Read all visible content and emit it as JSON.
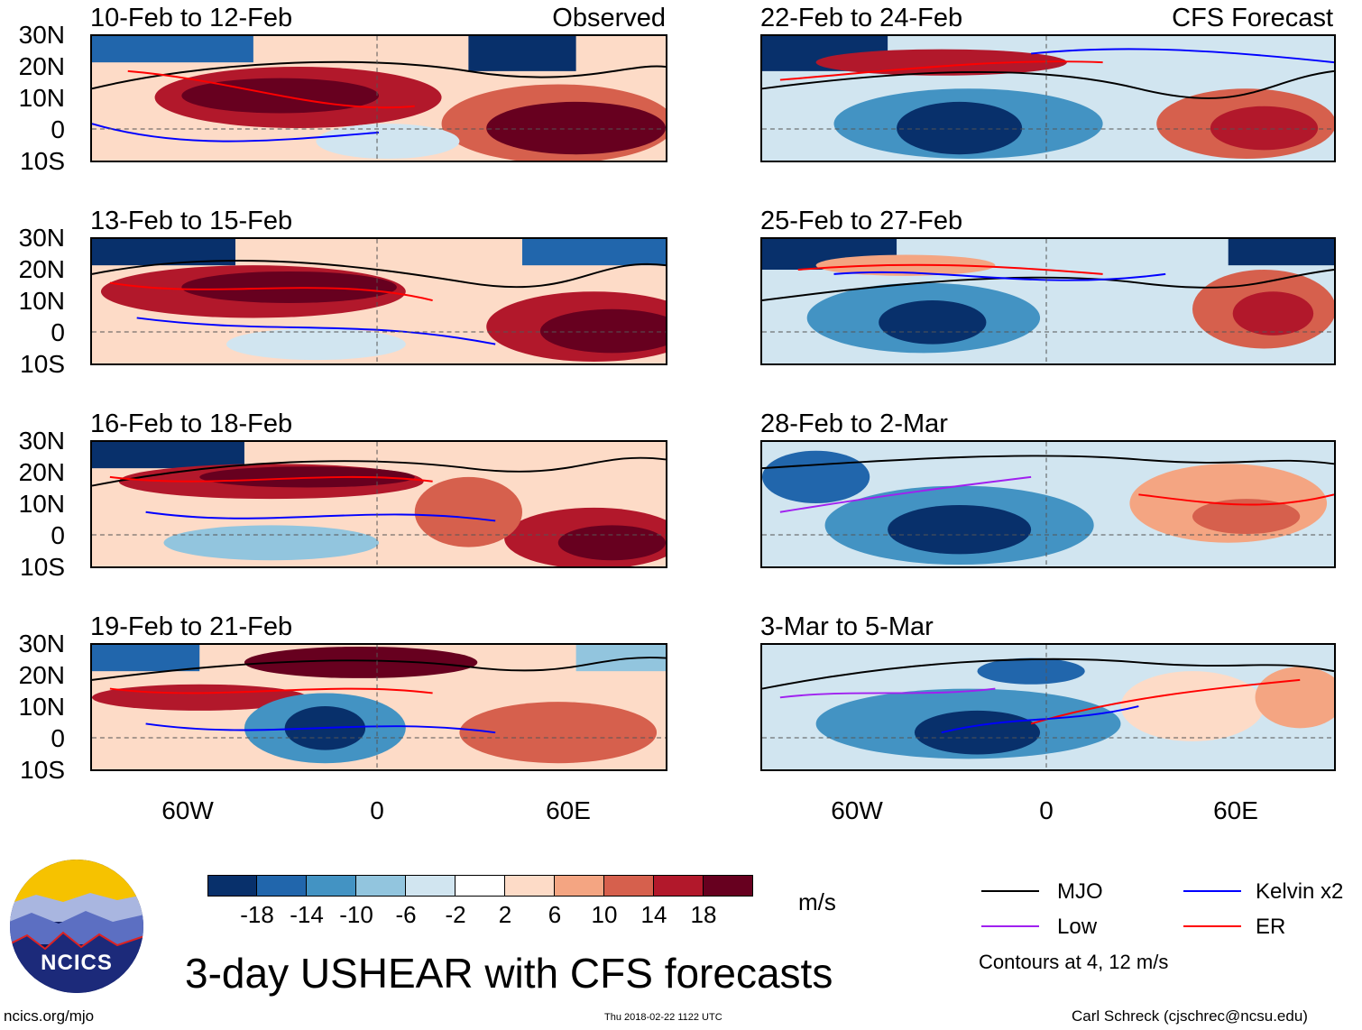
{
  "observed_label": "Observed",
  "forecast_label": "CFS Forecast",
  "lat_labels": [
    "30N",
    "20N",
    "10N",
    "0",
    "10S"
  ],
  "lon_labels": [
    "60W",
    "0",
    "60E"
  ],
  "panels_left": [
    {
      "title": "10-Feb to 12-Feb"
    },
    {
      "title": "13-Feb to 15-Feb"
    },
    {
      "title": "16-Feb to 18-Feb"
    },
    {
      "title": "19-Feb to 21-Feb"
    }
  ],
  "panels_right": [
    {
      "title": "22-Feb to 24-Feb"
    },
    {
      "title": "25-Feb to 27-Feb"
    },
    {
      "title": "28-Feb to 2-Mar"
    },
    {
      "title": "3-Mar to 5-Mar"
    }
  ],
  "colorbar": {
    "unit": "m/s",
    "labels": [
      "-18",
      "-14",
      "-10",
      "-6",
      "-2",
      "2",
      "6",
      "10",
      "14",
      "18"
    ],
    "colors": [
      "#08306b",
      "#2166ac",
      "#4393c3",
      "#92c5de",
      "#d1e5f0",
      "#ffffff",
      "#fddbc7",
      "#f4a582",
      "#d6604d",
      "#b2182b",
      "#67001f"
    ]
  },
  "legend": {
    "items": [
      {
        "label": "MJO",
        "color": "#000000"
      },
      {
        "label": "Kelvin x2",
        "color": "#0000ff"
      },
      {
        "label": "Low",
        "color": "#a020f0"
      },
      {
        "label": "ER",
        "color": "#ff0000"
      }
    ],
    "contours_note": "Contours at 4, 12 m/s"
  },
  "logo_text": "NCICS",
  "main_title": "3-day USHEAR with CFS forecasts",
  "footer_left": "ncics.org/mjo",
  "footer_center": "Thu 2018-02-22 1122 UTC",
  "footer_right": "Carl Schreck (cjschrec@ncsu.edu)"
}
